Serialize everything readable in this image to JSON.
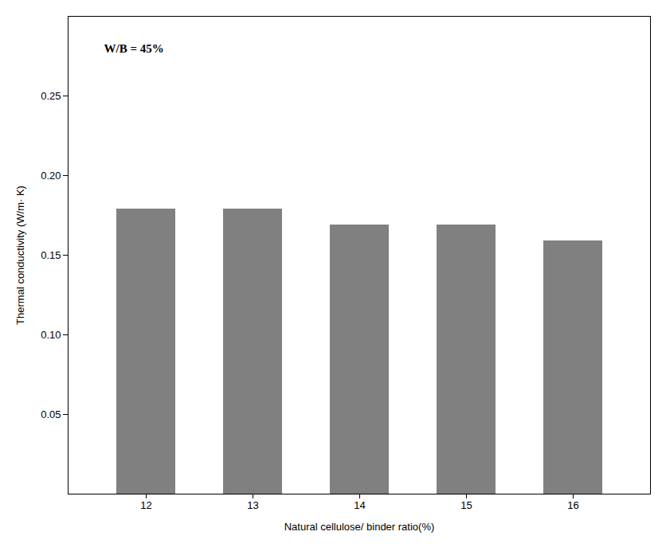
{
  "chart_data": {
    "type": "bar",
    "categories": [
      "12",
      "13",
      "14",
      "15",
      "16"
    ],
    "values": [
      0.179,
      0.179,
      0.169,
      0.169,
      0.159
    ],
    "color": "#808080",
    "xlabel": "Natural cellulose/ binder ratio(%)",
    "ylabel": "Thermal conductivity (W/m· K)",
    "annotation": "W/B = 45%",
    "ylim": [
      0,
      0.3
    ],
    "yticks": [
      0.05,
      {
        "value": 0.1,
        "label": "0.10"
      },
      0.15,
      {
        "value": 0.2,
        "label": "0.20"
      },
      0.25
    ],
    "grid": false
  }
}
